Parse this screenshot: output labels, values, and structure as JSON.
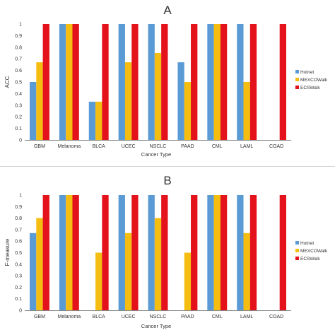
{
  "colors": {
    "Hotnet": "#5b9bd5",
    "MEXCOWalk": "#f5bd0f",
    "ECSWalk": "#e3121b",
    "axis": "#888888",
    "text": "#333333"
  },
  "chart_data": [
    {
      "type": "bar",
      "title": "A",
      "xlabel": "Cancer Type",
      "ylabel": "ACC",
      "ylim": [
        0,
        1
      ],
      "yticks": [
        "0",
        "0.1",
        "0.2",
        "0.3",
        "0.4",
        "0.5",
        "0.6",
        "0.7",
        "0.8",
        "0.9",
        "1"
      ],
      "grid": false,
      "legend_position": "right",
      "categories": [
        "GBM",
        "Melanoma",
        "BLCA",
        "UCEC",
        "NSCLC",
        "PAAD",
        "CML",
        "LAML",
        "COAD"
      ],
      "series": [
        {
          "name": "Hotnet",
          "values": [
            0.5,
            1,
            0.33,
            1,
            1,
            0.67,
            1,
            1,
            0
          ]
        },
        {
          "name": "MEXCOWalk",
          "values": [
            0.67,
            1,
            0.33,
            0.67,
            0.75,
            0.5,
            1,
            0.5,
            0
          ]
        },
        {
          "name": "ECSWalk",
          "values": [
            1,
            1,
            1,
            1,
            1,
            1,
            1,
            1,
            1
          ]
        }
      ]
    },
    {
      "type": "bar",
      "title": "B",
      "xlabel": "Cancer Type",
      "ylabel": "F-measure",
      "ylim": [
        0,
        1
      ],
      "yticks": [
        "0",
        "0.1",
        "0.2",
        "0.3",
        "0.4",
        "0.5",
        "0.6",
        "0.7",
        "0.8",
        "0.9",
        "1"
      ],
      "grid": false,
      "legend_position": "right",
      "categories": [
        "GBM",
        "Melanoma",
        "BLCA",
        "UCEC",
        "NSCLC",
        "PAAD",
        "CML",
        "LAML",
        "COAD"
      ],
      "series": [
        {
          "name": "Hotnet",
          "values": [
            0.67,
            1,
            0,
            1,
            1,
            0,
            1,
            1,
            0
          ]
        },
        {
          "name": "MEXCOWalk",
          "values": [
            0.8,
            1,
            0.5,
            0.67,
            0.8,
            0.5,
            1,
            0.67,
            0
          ]
        },
        {
          "name": "ECSWalk",
          "values": [
            1,
            1,
            1,
            1,
            1,
            1,
            1,
            1,
            1
          ]
        }
      ]
    }
  ]
}
